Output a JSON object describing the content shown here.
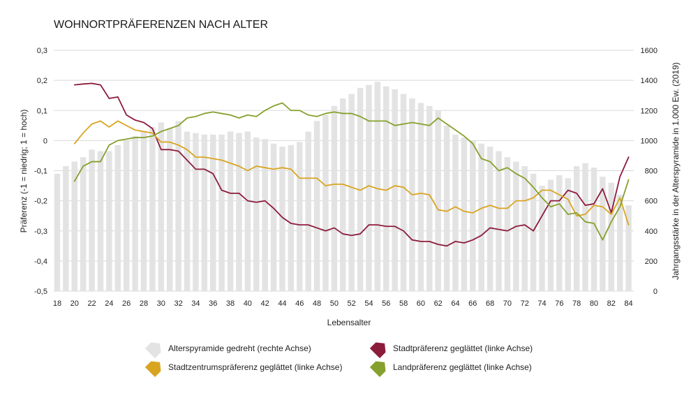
{
  "chart_data": {
    "type": "bar+line",
    "title": "WOHNORTPRÄFERENZEN NACH ALTER",
    "xlabel": "Lebensalter",
    "ylabel_left": "Präferenz (-1 = niedrig; 1 = hoch)",
    "ylabel_right": "Jahrgangsstärke in der Alterspyramide in 1.000 Ew. (2019)",
    "ylim_left": [
      -0.5,
      0.3
    ],
    "ylim_right": [
      0,
      1600
    ],
    "yticks_left": [
      "-0,5",
      "-0,4",
      "-0,3",
      "-0,2",
      "-0,1",
      "0",
      "0,1",
      "0,2",
      "0,3"
    ],
    "yticks_right": [
      "0",
      "200",
      "400",
      "600",
      "800",
      "1000",
      "1200",
      "1400",
      "1600"
    ],
    "xticks": [
      18,
      20,
      22,
      24,
      26,
      28,
      30,
      32,
      34,
      36,
      38,
      40,
      42,
      44,
      46,
      48,
      50,
      52,
      54,
      56,
      58,
      60,
      62,
      64,
      66,
      68,
      70,
      72,
      74,
      76,
      78,
      80,
      82,
      84
    ],
    "x": [
      18,
      19,
      20,
      21,
      22,
      23,
      24,
      25,
      26,
      27,
      28,
      29,
      30,
      31,
      32,
      33,
      34,
      35,
      36,
      37,
      38,
      39,
      40,
      41,
      42,
      43,
      44,
      45,
      46,
      47,
      48,
      49,
      50,
      51,
      52,
      53,
      54,
      55,
      56,
      57,
      58,
      59,
      60,
      61,
      62,
      63,
      64,
      65,
      66,
      67,
      68,
      69,
      70,
      71,
      72,
      73,
      74,
      75,
      76,
      77,
      78,
      79,
      80,
      81,
      82,
      83,
      84
    ],
    "grid": true,
    "legend_position": "bottom",
    "bars": {
      "name": "Alterspyramide gedreht (rechte Achse)",
      "axis": "right",
      "color": "#e3e3e3",
      "values": [
        780,
        830,
        860,
        890,
        940,
        930,
        930,
        970,
        1000,
        1030,
        1060,
        1090,
        1120,
        1080,
        1130,
        1060,
        1050,
        1040,
        1040,
        1040,
        1060,
        1050,
        1060,
        1020,
        1010,
        980,
        960,
        970,
        990,
        1060,
        1130,
        1170,
        1230,
        1280,
        1310,
        1350,
        1370,
        1390,
        1360,
        1340,
        1310,
        1280,
        1250,
        1230,
        1200,
        1100,
        1040,
        1020,
        1000,
        980,
        960,
        930,
        890,
        860,
        830,
        780,
        700,
        740,
        770,
        750,
        830,
        850,
        820,
        760,
        720,
        640,
        570
      ]
    },
    "series": [
      {
        "name": "Stadtpräferenz geglättet (linke Achse)",
        "axis": "left",
        "color": "#8c1c3c",
        "values": [
          null,
          null,
          0.185,
          0.188,
          0.19,
          0.185,
          0.14,
          0.145,
          0.085,
          0.068,
          0.06,
          0.04,
          -0.03,
          -0.03,
          -0.035,
          -0.065,
          -0.095,
          -0.095,
          -0.11,
          -0.165,
          -0.175,
          -0.175,
          -0.2,
          -0.205,
          -0.2,
          -0.225,
          -0.255,
          -0.275,
          -0.28,
          -0.28,
          -0.29,
          -0.3,
          -0.29,
          -0.31,
          -0.315,
          -0.31,
          -0.28,
          -0.28,
          -0.285,
          -0.285,
          -0.3,
          -0.33,
          -0.335,
          -0.335,
          -0.345,
          -0.35,
          -0.335,
          -0.34,
          -0.33,
          -0.315,
          -0.29,
          -0.295,
          -0.3,
          -0.285,
          -0.28,
          -0.3,
          -0.25,
          -0.2,
          -0.2,
          -0.165,
          -0.175,
          -0.215,
          -0.21,
          -0.16,
          -0.24,
          -0.12,
          -0.055
        ]
      },
      {
        "name": "Stadtzentrumspräferenz geglättet (linke Achse)",
        "axis": "left",
        "color": "#d9a520",
        "values": [
          null,
          null,
          -0.01,
          0.025,
          0.055,
          0.065,
          0.045,
          0.065,
          0.05,
          0.035,
          0.03,
          0.025,
          -0.005,
          -0.005,
          -0.015,
          -0.03,
          -0.055,
          -0.055,
          -0.06,
          -0.065,
          -0.075,
          -0.085,
          -0.1,
          -0.085,
          -0.09,
          -0.095,
          -0.09,
          -0.095,
          -0.125,
          -0.125,
          -0.125,
          -0.15,
          -0.145,
          -0.145,
          -0.155,
          -0.165,
          -0.15,
          -0.16,
          -0.165,
          -0.15,
          -0.155,
          -0.18,
          -0.175,
          -0.18,
          -0.23,
          -0.235,
          -0.22,
          -0.235,
          -0.24,
          -0.225,
          -0.215,
          -0.225,
          -0.225,
          -0.2,
          -0.2,
          -0.19,
          -0.165,
          -0.165,
          -0.18,
          -0.195,
          -0.25,
          -0.245,
          -0.215,
          -0.22,
          -0.245,
          -0.19,
          -0.28
        ]
      },
      {
        "name": "Landpräferenz geglättet (linke Achse)",
        "axis": "left",
        "color": "#86a02e",
        "values": [
          null,
          null,
          -0.135,
          -0.085,
          -0.07,
          -0.07,
          -0.015,
          0,
          0.005,
          0.01,
          0.01,
          0.015,
          0.03,
          0.04,
          0.05,
          0.075,
          0.08,
          0.09,
          0.095,
          0.09,
          0.085,
          0.075,
          0.085,
          0.08,
          0.1,
          0.115,
          0.125,
          0.1,
          0.1,
          0.085,
          0.08,
          0.09,
          0.095,
          0.09,
          0.09,
          0.08,
          0.065,
          0.065,
          0.065,
          0.05,
          0.055,
          0.06,
          0.055,
          0.05,
          0.075,
          0.055,
          0.035,
          0.015,
          -0.01,
          -0.06,
          -0.07,
          -0.1,
          -0.09,
          -0.11,
          -0.125,
          -0.155,
          -0.19,
          -0.22,
          -0.21,
          -0.245,
          -0.24,
          -0.27,
          -0.275,
          -0.33,
          -0.27,
          -0.22,
          -0.13
        ]
      }
    ]
  }
}
